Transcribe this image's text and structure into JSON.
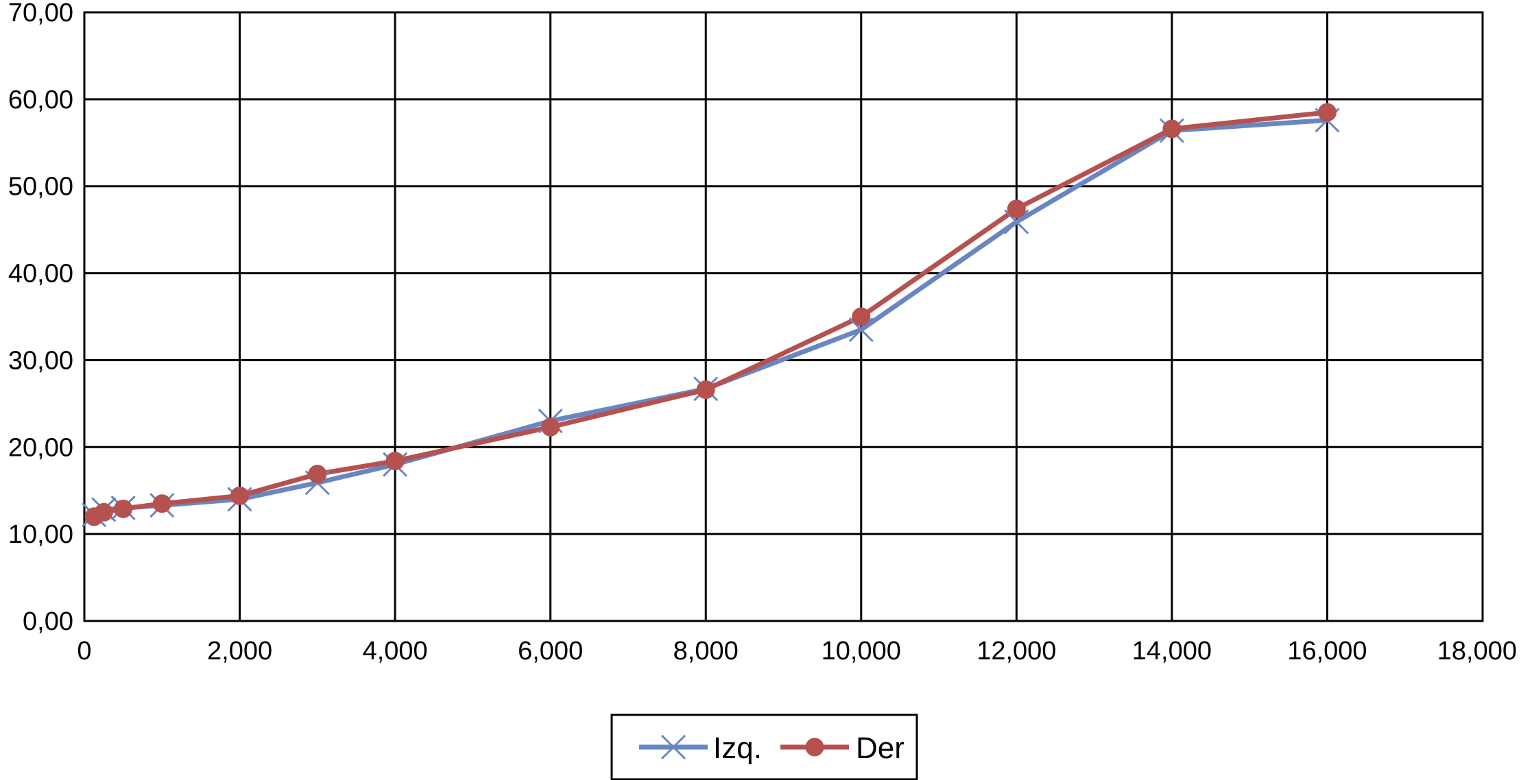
{
  "chart_data": {
    "type": "line",
    "title": "",
    "xlabel": "",
    "ylabel": "",
    "xlim": [
      0,
      18000
    ],
    "ylim": [
      0,
      70
    ],
    "x_ticks": [
      0,
      2000,
      4000,
      6000,
      8000,
      10000,
      12000,
      14000,
      16000,
      18000
    ],
    "x_tick_labels": [
      "0",
      "2,000",
      "4,000",
      "6,000",
      "8,000",
      "10,000",
      "12,000",
      "14,000",
      "16,000",
      "18,000"
    ],
    "y_ticks": [
      0,
      10,
      20,
      30,
      40,
      50,
      60,
      70
    ],
    "y_tick_labels": [
      "0,00",
      "10,00",
      "20,00",
      "30,00",
      "40,00",
      "50,00",
      "60,00",
      "70,00"
    ],
    "grid": true,
    "legend_position": "bottom-center",
    "x": [
      125,
      250,
      500,
      1000,
      2000,
      3000,
      4000,
      6000,
      8000,
      10000,
      12000,
      14000,
      16000
    ],
    "series": [
      {
        "name": "Izq.",
        "color": "#6A86C2",
        "marker": "x",
        "values": [
          12.2,
          12.8,
          13.0,
          13.3,
          14.0,
          15.9,
          18.0,
          23.0,
          26.7,
          33.5,
          45.9,
          56.4,
          57.6
        ]
      },
      {
        "name": "Der",
        "color": "#B5514F",
        "marker": "circle",
        "values": [
          12.0,
          12.5,
          12.9,
          13.5,
          14.4,
          16.9,
          18.4,
          22.3,
          26.6,
          35.0,
          47.4,
          56.6,
          58.5
        ]
      }
    ]
  }
}
